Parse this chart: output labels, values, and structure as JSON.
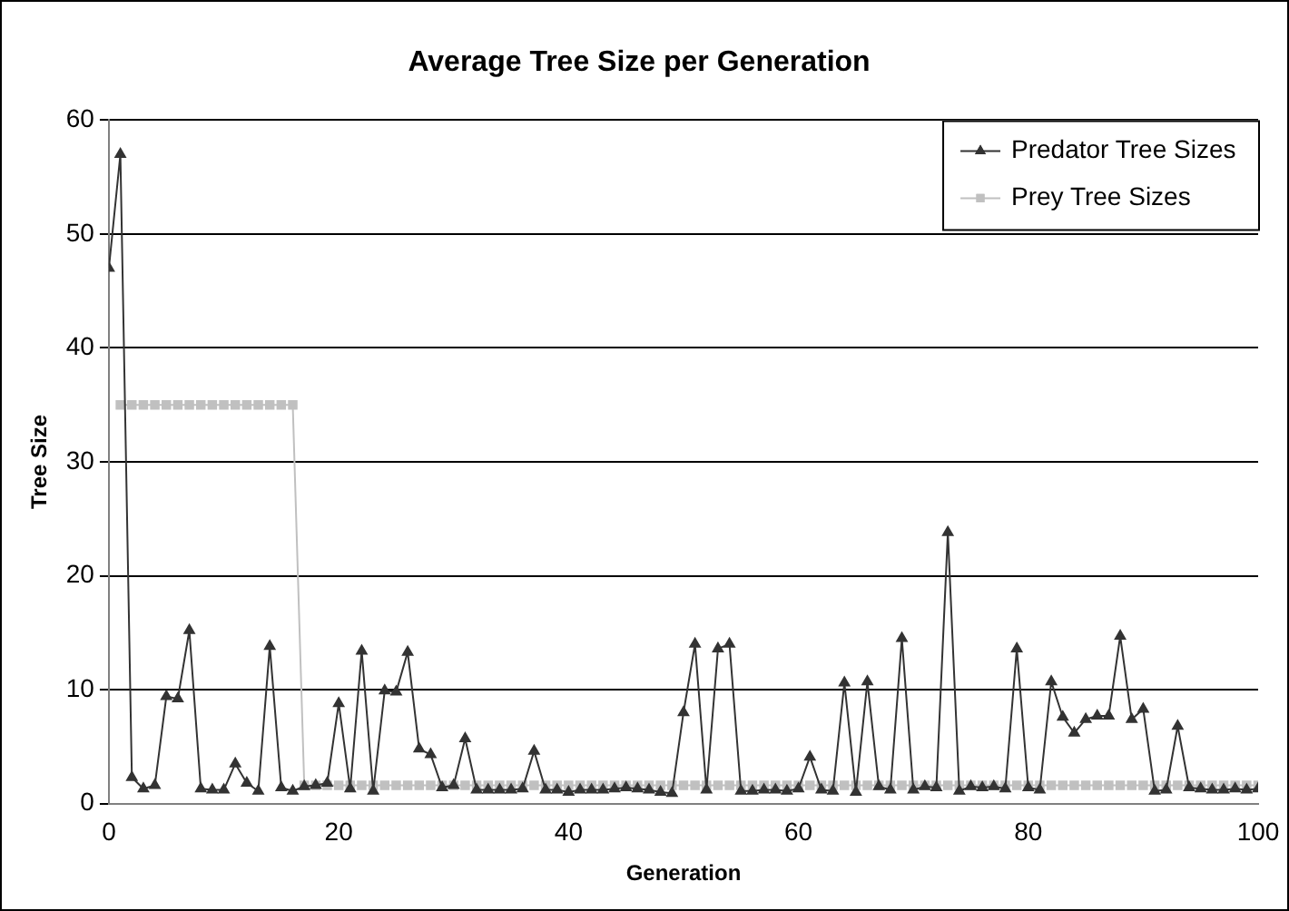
{
  "chart_data": {
    "type": "line",
    "title": "Average Tree Size per Generation",
    "xlabel": "Generation",
    "ylabel": "Tree Size",
    "xlim": [
      0,
      100
    ],
    "xticks": [
      0,
      20,
      40,
      60,
      80,
      100
    ],
    "ylim": [
      0,
      60
    ],
    "yticks": [
      0,
      10,
      20,
      30,
      40,
      50,
      60
    ],
    "grid": "y",
    "legend": "top right",
    "series": [
      {
        "name": "Predator Tree Sizes",
        "color": "#333333",
        "marker": "triangle",
        "x": [
          0,
          1,
          2,
          3,
          4,
          5,
          6,
          7,
          8,
          9,
          10,
          11,
          12,
          13,
          14,
          15,
          16,
          17,
          18,
          19,
          20,
          21,
          22,
          23,
          24,
          25,
          26,
          27,
          28,
          29,
          30,
          31,
          32,
          33,
          34,
          35,
          36,
          37,
          38,
          39,
          40,
          41,
          42,
          43,
          44,
          45,
          46,
          47,
          48,
          49,
          50,
          51,
          52,
          53,
          54,
          55,
          56,
          57,
          58,
          59,
          60,
          61,
          62,
          63,
          64,
          65,
          66,
          67,
          68,
          69,
          70,
          71,
          72,
          73,
          74,
          75,
          76,
          77,
          78,
          79,
          80,
          81,
          82,
          83,
          84,
          85,
          86,
          87,
          88,
          89,
          90,
          91,
          92,
          93,
          94,
          95,
          96,
          97,
          98,
          99,
          100
        ],
        "values": [
          47,
          57,
          2.3,
          1.3,
          1.6,
          9.4,
          9.2,
          15.2,
          1.3,
          1.2,
          1.2,
          3.5,
          1.8,
          1.1,
          13.8,
          1.4,
          1.1,
          1.5,
          1.6,
          1.8,
          8.8,
          1.3,
          13.4,
          1.1,
          9.9,
          9.8,
          13.3,
          4.8,
          4.3,
          1.4,
          1.6,
          5.7,
          1.2,
          1.2,
          1.2,
          1.2,
          1.3,
          4.6,
          1.2,
          1.2,
          1.0,
          1.2,
          1.2,
          1.2,
          1.3,
          1.4,
          1.3,
          1.2,
          1.0,
          0.9,
          8.0,
          14.0,
          1.2,
          13.6,
          14.0,
          1.1,
          1.1,
          1.2,
          1.2,
          1.1,
          1.3,
          4.1,
          1.2,
          1.1,
          10.6,
          1.0,
          10.7,
          1.5,
          1.2,
          14.5,
          1.2,
          1.5,
          1.4,
          23.8,
          1.1,
          1.5,
          1.4,
          1.5,
          1.3,
          13.6,
          1.4,
          1.2,
          10.7,
          7.6,
          6.2,
          7.4,
          7.7,
          7.7,
          14.7,
          7.4,
          8.3,
          1.1,
          1.2,
          6.8,
          1.4,
          1.3,
          1.2,
          1.2,
          1.3,
          1.2,
          1.3
        ]
      },
      {
        "name": "Prey Tree Sizes",
        "color": "#c0c0c0",
        "marker": "square",
        "x": [
          1,
          2,
          3,
          4,
          5,
          6,
          7,
          8,
          9,
          10,
          11,
          12,
          13,
          14,
          15,
          16,
          17,
          18,
          19,
          20,
          21,
          22,
          23,
          24,
          25,
          26,
          27,
          28,
          29,
          30,
          31,
          32,
          33,
          34,
          35,
          36,
          37,
          38,
          39,
          40,
          41,
          42,
          43,
          44,
          45,
          46,
          47,
          48,
          49,
          50,
          51,
          52,
          53,
          54,
          55,
          56,
          57,
          58,
          59,
          60,
          61,
          62,
          63,
          64,
          65,
          66,
          67,
          68,
          69,
          70,
          71,
          72,
          73,
          74,
          75,
          76,
          77,
          78,
          79,
          80,
          81,
          82,
          83,
          84,
          85,
          86,
          87,
          88,
          89,
          90,
          91,
          92,
          93,
          94,
          95,
          96,
          97,
          98,
          99,
          100
        ],
        "values": [
          35,
          35,
          35,
          35,
          35,
          35,
          35,
          35,
          35,
          35,
          35,
          35,
          35,
          35,
          35,
          35,
          1.6,
          1.6,
          1.6,
          1.6,
          1.6,
          1.6,
          1.6,
          1.6,
          1.6,
          1.6,
          1.6,
          1.6,
          1.6,
          1.6,
          1.6,
          1.6,
          1.6,
          1.6,
          1.6,
          1.6,
          1.6,
          1.6,
          1.6,
          1.6,
          1.6,
          1.6,
          1.6,
          1.6,
          1.6,
          1.6,
          1.6,
          1.6,
          1.6,
          1.6,
          1.6,
          1.6,
          1.6,
          1.6,
          1.6,
          1.6,
          1.6,
          1.6,
          1.6,
          1.6,
          1.6,
          1.6,
          1.6,
          1.6,
          1.6,
          1.6,
          1.6,
          1.6,
          1.6,
          1.6,
          1.6,
          1.6,
          1.6,
          1.6,
          1.6,
          1.6,
          1.6,
          1.6,
          1.6,
          1.6,
          1.6,
          1.6,
          1.6,
          1.6,
          1.6,
          1.6,
          1.6,
          1.6,
          1.6,
          1.6,
          1.6,
          1.6,
          1.6,
          1.6,
          1.6,
          1.6,
          1.6,
          1.6,
          1.6,
          1.6
        ]
      }
    ]
  }
}
